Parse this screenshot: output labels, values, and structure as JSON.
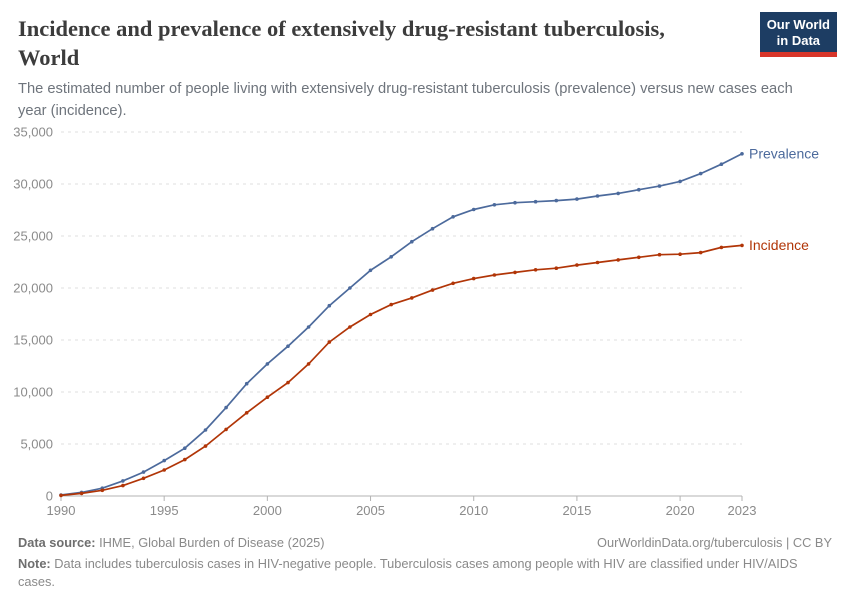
{
  "header": {
    "title": "Incidence and prevalence of extensively drug-resistant tuberculosis, World",
    "subtitle": "The estimated number of people living with extensively drug-resistant tuberculosis (prevalence) versus new cases each year (incidence)."
  },
  "logo": {
    "line1": "Our World",
    "line2": "in Data",
    "bg_color": "#1d3d63",
    "accent_color": "#d8352a"
  },
  "chart_data": {
    "type": "line",
    "x": [
      1990,
      1991,
      1992,
      1993,
      1994,
      1995,
      1996,
      1997,
      1998,
      1999,
      2000,
      2001,
      2002,
      2003,
      2004,
      2005,
      2006,
      2007,
      2008,
      2009,
      2010,
      2011,
      2012,
      2013,
      2014,
      2015,
      2016,
      2017,
      2018,
      2019,
      2020,
      2021,
      2022,
      2023
    ],
    "series": [
      {
        "name": "Prevalence",
        "color": "#4c6a9c",
        "values": [
          100,
          350,
          750,
          1450,
          2300,
          3400,
          4600,
          6350,
          8500,
          10800,
          12700,
          14400,
          16250,
          18300,
          20000,
          21700,
          23000,
          24450,
          25700,
          26850,
          27550,
          28000,
          28200,
          28300,
          28400,
          28550,
          28850,
          29100,
          29450,
          29800,
          30250,
          31000,
          31900,
          32900
        ]
      },
      {
        "name": "Incidence",
        "color": "#b13507",
        "values": [
          60,
          250,
          550,
          1000,
          1700,
          2500,
          3500,
          4800,
          6400,
          8000,
          9500,
          10900,
          12700,
          14800,
          16250,
          17450,
          18400,
          19050,
          19800,
          20450,
          20900,
          21250,
          21500,
          21750,
          21900,
          22200,
          22450,
          22700,
          22950,
          23200,
          23250,
          23400,
          23900,
          24100
        ]
      }
    ],
    "ylim": [
      0,
      35000
    ],
    "yticks": [
      0,
      5000,
      10000,
      15000,
      20000,
      25000,
      30000,
      35000
    ],
    "xticks": [
      1990,
      1995,
      2000,
      2005,
      2010,
      2015,
      2020,
      2023
    ],
    "grid": "horizontal-dashed",
    "title": "Incidence and prevalence of extensively drug-resistant tuberculosis, World"
  },
  "footer": {
    "source_label": "Data source:",
    "source_text": " IHME, Global Burden of Disease (2025)",
    "url_text": "OurWorldinData.org/tuberculosis | CC BY",
    "note_label": "Note:",
    "note_text": " Data includes tuberculosis cases in HIV-negative people. Tuberculosis cases among people with HIV are classified under HIV/AIDS cases."
  }
}
